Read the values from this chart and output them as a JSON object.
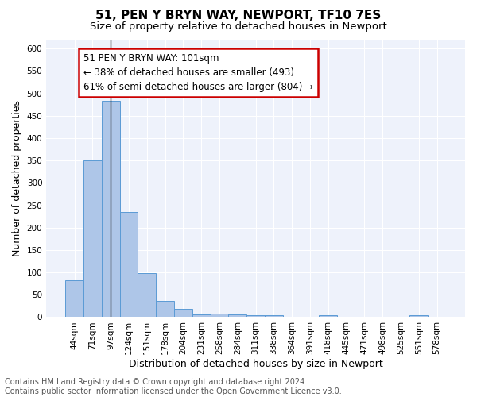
{
  "title": "51, PEN Y BRYN WAY, NEWPORT, TF10 7ES",
  "subtitle": "Size of property relative to detached houses in Newport",
  "xlabel": "Distribution of detached houses by size in Newport",
  "ylabel": "Number of detached properties",
  "categories": [
    "44sqm",
    "71sqm",
    "97sqm",
    "124sqm",
    "151sqm",
    "178sqm",
    "204sqm",
    "231sqm",
    "258sqm",
    "284sqm",
    "311sqm",
    "338sqm",
    "364sqm",
    "391sqm",
    "418sqm",
    "445sqm",
    "471sqm",
    "498sqm",
    "525sqm",
    "551sqm",
    "578sqm"
  ],
  "values": [
    83,
    350,
    483,
    235,
    98,
    37,
    18,
    7,
    8,
    7,
    5,
    5,
    0,
    0,
    5,
    0,
    0,
    0,
    0,
    5,
    0
  ],
  "bar_color": "#aec6e8",
  "bar_edge_color": "#5b9bd5",
  "vline_x_index": 2,
  "vline_color": "#1a1a1a",
  "annotation_line1": "51 PEN Y BRYN WAY: 101sqm",
  "annotation_line2": "← 38% of detached houses are smaller (493)",
  "annotation_line3": "61% of semi-detached houses are larger (804) →",
  "annotation_box_color": "#ffffff",
  "annotation_box_edge_color": "#cc0000",
  "ylim": [
    0,
    620
  ],
  "yticks": [
    0,
    50,
    100,
    150,
    200,
    250,
    300,
    350,
    400,
    450,
    500,
    550,
    600
  ],
  "bg_color": "#eef2fb",
  "grid_color": "#ffffff",
  "footer_text": "Contains HM Land Registry data © Crown copyright and database right 2024.\nContains public sector information licensed under the Open Government Licence v3.0.",
  "title_fontsize": 11,
  "subtitle_fontsize": 9.5,
  "xlabel_fontsize": 9,
  "ylabel_fontsize": 9,
  "tick_fontsize": 7.5,
  "annotation_fontsize": 8.5,
  "footer_fontsize": 7
}
